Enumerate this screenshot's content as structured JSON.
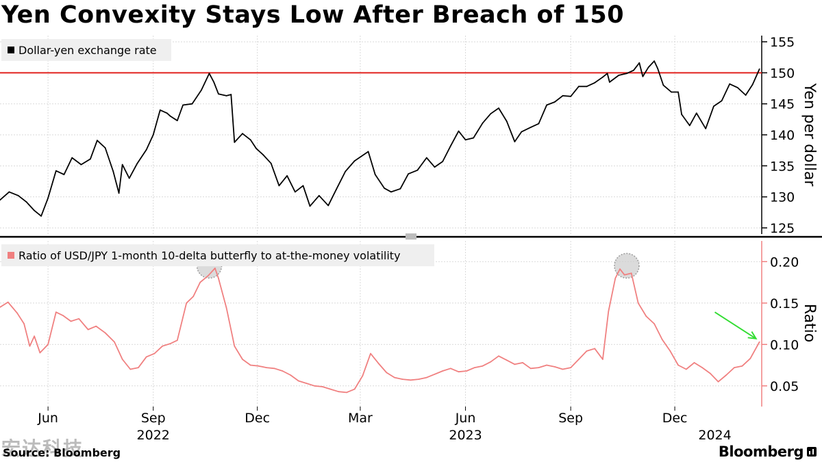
{
  "title": "Yen Convexity Stays Low After Breach of 150",
  "source": "Source: Bloomberg",
  "brand": "Bloomberg",
  "watermark": "宏达科技",
  "colors": {
    "fx": "#000000",
    "ratio": "#f08080",
    "reference": "#e0201c",
    "arrow": "#33dd33",
    "highlight": "#b8b8b8"
  },
  "icons": [
    "bloomberg-logo-icon"
  ],
  "x_axis": {
    "months": [
      {
        "label": "Jun",
        "date": "2022-06-01"
      },
      {
        "label": "Sep",
        "date": "2022-09-01"
      },
      {
        "label": "Dec",
        "date": "2022-12-01"
      },
      {
        "label": "Mar",
        "date": "2023-03-01"
      },
      {
        "label": "Jun",
        "date": "2023-06-01"
      },
      {
        "label": "Sep",
        "date": "2023-09-01"
      },
      {
        "label": "Dec",
        "date": "2023-12-01"
      }
    ],
    "years": [
      {
        "label": "2022",
        "date": "2022-09-01"
      },
      {
        "label": "2023",
        "date": "2023-06-01"
      },
      {
        "label": "2024",
        "date": "2024-01-05"
      }
    ],
    "range": [
      "2022-04-20",
      "2024-02-15"
    ]
  },
  "chart_data": [
    {
      "type": "line",
      "ylabel": "Yen per dollar",
      "ylim": [
        124,
        156
      ],
      "yticks": [
        125,
        130,
        135,
        140,
        145,
        150,
        155
      ],
      "reference_line": 150,
      "grid": true,
      "legend": "top-left",
      "series": [
        {
          "name": "Dollar-yen exchange rate",
          "points": [
            [
              "2022-04-20",
              129.5
            ],
            [
              "2022-04-28",
              130.8
            ],
            [
              "2022-05-06",
              130.2
            ],
            [
              "2022-05-13",
              129.2
            ],
            [
              "2022-05-20",
              127.8
            ],
            [
              "2022-05-26",
              126.9
            ],
            [
              "2022-06-01",
              129.8
            ],
            [
              "2022-06-08",
              134.2
            ],
            [
              "2022-06-15",
              133.6
            ],
            [
              "2022-06-22",
              136.3
            ],
            [
              "2022-06-30",
              135.2
            ],
            [
              "2022-07-08",
              136.1
            ],
            [
              "2022-07-14",
              139.1
            ],
            [
              "2022-07-21",
              137.9
            ],
            [
              "2022-07-28",
              134.1
            ],
            [
              "2022-08-02",
              130.6
            ],
            [
              "2022-08-05",
              135.2
            ],
            [
              "2022-08-11",
              133.0
            ],
            [
              "2022-08-18",
              135.4
            ],
            [
              "2022-08-26",
              137.6
            ],
            [
              "2022-09-01",
              140.0
            ],
            [
              "2022-09-07",
              144.0
            ],
            [
              "2022-09-13",
              143.5
            ],
            [
              "2022-09-16",
              143.0
            ],
            [
              "2022-09-22",
              142.3
            ],
            [
              "2022-09-27",
              144.8
            ],
            [
              "2022-10-05",
              145.0
            ],
            [
              "2022-10-13",
              147.2
            ],
            [
              "2022-10-20",
              149.9
            ],
            [
              "2022-10-24",
              148.5
            ],
            [
              "2022-10-28",
              146.6
            ],
            [
              "2022-11-04",
              146.3
            ],
            [
              "2022-11-08",
              146.5
            ],
            [
              "2022-11-11",
              138.8
            ],
            [
              "2022-11-18",
              140.2
            ],
            [
              "2022-11-25",
              139.2
            ],
            [
              "2022-11-30",
              137.8
            ],
            [
              "2022-12-06",
              136.8
            ],
            [
              "2022-12-13",
              135.4
            ],
            [
              "2022-12-20",
              131.8
            ],
            [
              "2022-12-27",
              133.4
            ],
            [
              "2023-01-03",
              130.8
            ],
            [
              "2023-01-10",
              131.8
            ],
            [
              "2023-01-16",
              128.5
            ],
            [
              "2023-01-24",
              130.2
            ],
            [
              "2023-02-01",
              128.6
            ],
            [
              "2023-02-08",
              131.2
            ],
            [
              "2023-02-16",
              134.1
            ],
            [
              "2023-02-24",
              135.8
            ],
            [
              "2023-03-08",
              137.3
            ],
            [
              "2023-03-14",
              133.6
            ],
            [
              "2023-03-22",
              131.4
            ],
            [
              "2023-03-28",
              130.8
            ],
            [
              "2023-04-05",
              131.3
            ],
            [
              "2023-04-12",
              133.7
            ],
            [
              "2023-04-20",
              134.3
            ],
            [
              "2023-04-28",
              136.3
            ],
            [
              "2023-05-05",
              134.8
            ],
            [
              "2023-05-12",
              135.7
            ],
            [
              "2023-05-19",
              138.2
            ],
            [
              "2023-05-26",
              140.6
            ],
            [
              "2023-06-01",
              139.2
            ],
            [
              "2023-06-08",
              139.5
            ],
            [
              "2023-06-16",
              141.9
            ],
            [
              "2023-06-23",
              143.4
            ],
            [
              "2023-06-30",
              144.3
            ],
            [
              "2023-07-07",
              142.2
            ],
            [
              "2023-07-14",
              138.9
            ],
            [
              "2023-07-20",
              140.5
            ],
            [
              "2023-07-28",
              141.2
            ],
            [
              "2023-08-04",
              141.8
            ],
            [
              "2023-08-11",
              144.8
            ],
            [
              "2023-08-18",
              145.3
            ],
            [
              "2023-08-25",
              146.3
            ],
            [
              "2023-09-01",
              146.2
            ],
            [
              "2023-09-08",
              147.8
            ],
            [
              "2023-09-15",
              147.8
            ],
            [
              "2023-09-22",
              148.4
            ],
            [
              "2023-09-29",
              149.3
            ],
            [
              "2023-10-03",
              149.9
            ],
            [
              "2023-10-05",
              148.5
            ],
            [
              "2023-10-13",
              149.6
            ],
            [
              "2023-10-20",
              149.9
            ],
            [
              "2023-10-26",
              150.4
            ],
            [
              "2023-10-31",
              151.6
            ],
            [
              "2023-11-03",
              149.4
            ],
            [
              "2023-11-08",
              150.9
            ],
            [
              "2023-11-13",
              151.9
            ],
            [
              "2023-11-16",
              150.7
            ],
            [
              "2023-11-21",
              148.0
            ],
            [
              "2023-11-28",
              146.9
            ],
            [
              "2023-12-04",
              146.9
            ],
            [
              "2023-12-07",
              143.3
            ],
            [
              "2023-12-14",
              141.5
            ],
            [
              "2023-12-20",
              143.5
            ],
            [
              "2023-12-28",
              141.0
            ],
            [
              "2024-01-04",
              144.6
            ],
            [
              "2024-01-11",
              145.5
            ],
            [
              "2024-01-18",
              148.2
            ],
            [
              "2024-01-25",
              147.6
            ],
            [
              "2024-02-01",
              146.4
            ],
            [
              "2024-02-07",
              148.1
            ],
            [
              "2024-02-13",
              150.6
            ]
          ]
        }
      ]
    },
    {
      "type": "line",
      "ylabel": "Ratio",
      "ylim": [
        0.025,
        0.225
      ],
      "yticks": [
        0.05,
        0.1,
        0.15,
        0.2
      ],
      "ytick_labels": [
        "0.05",
        "0.10",
        "0.15",
        "0.20"
      ],
      "grid": true,
      "legend": "top-left",
      "annotations": [
        {
          "type": "circle",
          "date": "2022-10-20",
          "value": 0.195
        },
        {
          "type": "circle",
          "date": "2023-10-20",
          "value": 0.195
        },
        {
          "type": "arrow",
          "from": [
            "2024-01-05",
            0.139
          ],
          "to": [
            "2024-02-10",
            0.107
          ]
        }
      ],
      "series": [
        {
          "name": "Ratio of USD/JPY 1-month 10-delta butterfly to at-the-money volatility",
          "points": [
            [
              "2022-04-20",
              0.145
            ],
            [
              "2022-04-27",
              0.151
            ],
            [
              "2022-05-05",
              0.138
            ],
            [
              "2022-05-11",
              0.125
            ],
            [
              "2022-05-16",
              0.098
            ],
            [
              "2022-05-20",
              0.11
            ],
            [
              "2022-05-25",
              0.09
            ],
            [
              "2022-06-01",
              0.1
            ],
            [
              "2022-06-08",
              0.139
            ],
            [
              "2022-06-14",
              0.135
            ],
            [
              "2022-06-21",
              0.128
            ],
            [
              "2022-06-28",
              0.131
            ],
            [
              "2022-07-06",
              0.118
            ],
            [
              "2022-07-13",
              0.122
            ],
            [
              "2022-07-21",
              0.114
            ],
            [
              "2022-07-29",
              0.103
            ],
            [
              "2022-08-05",
              0.082
            ],
            [
              "2022-08-12",
              0.07
            ],
            [
              "2022-08-19",
              0.072
            ],
            [
              "2022-08-26",
              0.085
            ],
            [
              "2022-09-02",
              0.089
            ],
            [
              "2022-09-09",
              0.098
            ],
            [
              "2022-09-16",
              0.101
            ],
            [
              "2022-09-22",
              0.105
            ],
            [
              "2022-09-30",
              0.15
            ],
            [
              "2022-10-06",
              0.158
            ],
            [
              "2022-10-12",
              0.175
            ],
            [
              "2022-10-19",
              0.183
            ],
            [
              "2022-10-25",
              0.192
            ],
            [
              "2022-10-28",
              0.18
            ],
            [
              "2022-11-04",
              0.144
            ],
            [
              "2022-11-11",
              0.098
            ],
            [
              "2022-11-18",
              0.082
            ],
            [
              "2022-11-25",
              0.075
            ],
            [
              "2022-12-02",
              0.074
            ],
            [
              "2022-12-09",
              0.072
            ],
            [
              "2022-12-16",
              0.071
            ],
            [
              "2022-12-23",
              0.068
            ],
            [
              "2022-12-30",
              0.063
            ],
            [
              "2023-01-06",
              0.056
            ],
            [
              "2023-01-13",
              0.053
            ],
            [
              "2023-01-20",
              0.05
            ],
            [
              "2023-01-27",
              0.049
            ],
            [
              "2023-02-03",
              0.046
            ],
            [
              "2023-02-10",
              0.043
            ],
            [
              "2023-02-17",
              0.042
            ],
            [
              "2023-02-24",
              0.046
            ],
            [
              "2023-03-03",
              0.062
            ],
            [
              "2023-03-10",
              0.089
            ],
            [
              "2023-03-17",
              0.077
            ],
            [
              "2023-03-24",
              0.066
            ],
            [
              "2023-03-31",
              0.06
            ],
            [
              "2023-04-07",
              0.058
            ],
            [
              "2023-04-14",
              0.057
            ],
            [
              "2023-04-21",
              0.058
            ],
            [
              "2023-04-28",
              0.06
            ],
            [
              "2023-05-05",
              0.064
            ],
            [
              "2023-05-12",
              0.068
            ],
            [
              "2023-05-19",
              0.071
            ],
            [
              "2023-05-26",
              0.067
            ],
            [
              "2023-06-02",
              0.068
            ],
            [
              "2023-06-09",
              0.072
            ],
            [
              "2023-06-16",
              0.074
            ],
            [
              "2023-06-23",
              0.079
            ],
            [
              "2023-06-30",
              0.086
            ],
            [
              "2023-07-07",
              0.081
            ],
            [
              "2023-07-14",
              0.076
            ],
            [
              "2023-07-21",
              0.078
            ],
            [
              "2023-07-28",
              0.071
            ],
            [
              "2023-08-04",
              0.072
            ],
            [
              "2023-08-11",
              0.075
            ],
            [
              "2023-08-18",
              0.073
            ],
            [
              "2023-08-25",
              0.07
            ],
            [
              "2023-09-01",
              0.072
            ],
            [
              "2023-09-08",
              0.082
            ],
            [
              "2023-09-15",
              0.092
            ],
            [
              "2023-09-22",
              0.095
            ],
            [
              "2023-09-29",
              0.082
            ],
            [
              "2023-10-04",
              0.14
            ],
            [
              "2023-10-10",
              0.18
            ],
            [
              "2023-10-14",
              0.191
            ],
            [
              "2023-10-18",
              0.184
            ],
            [
              "2023-10-24",
              0.186
            ],
            [
              "2023-10-30",
              0.15
            ],
            [
              "2023-11-06",
              0.134
            ],
            [
              "2023-11-13",
              0.125
            ],
            [
              "2023-11-20",
              0.106
            ],
            [
              "2023-11-27",
              0.092
            ],
            [
              "2023-12-04",
              0.075
            ],
            [
              "2023-12-11",
              0.07
            ],
            [
              "2023-12-18",
              0.078
            ],
            [
              "2023-12-25",
              0.072
            ],
            [
              "2024-01-01",
              0.065
            ],
            [
              "2024-01-08",
              0.055
            ],
            [
              "2024-01-15",
              0.063
            ],
            [
              "2024-01-22",
              0.072
            ],
            [
              "2024-01-29",
              0.074
            ],
            [
              "2024-02-05",
              0.083
            ],
            [
              "2024-02-13",
              0.103
            ]
          ]
        }
      ]
    }
  ]
}
